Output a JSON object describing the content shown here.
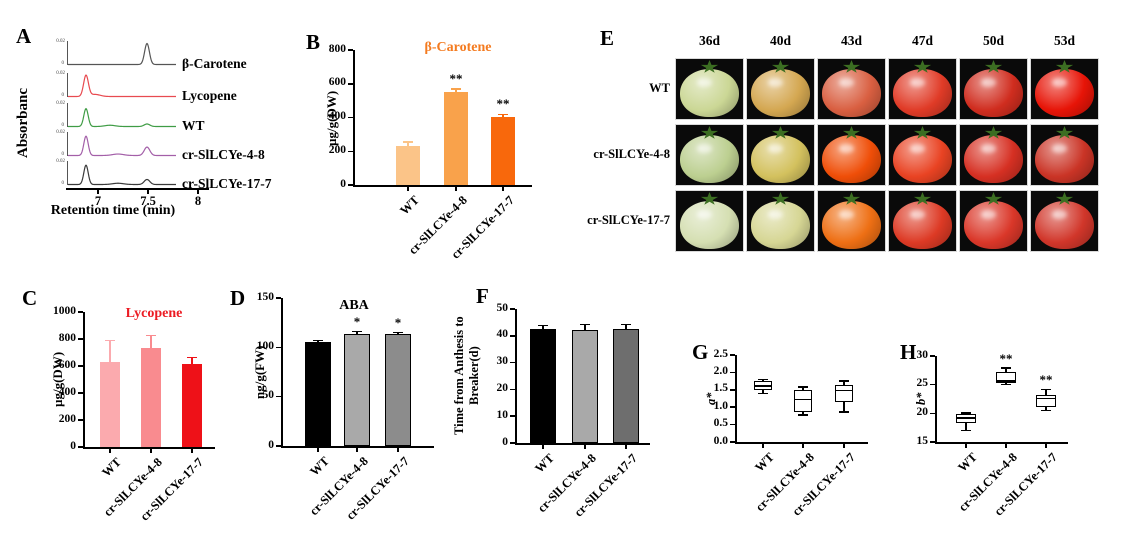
{
  "panel_letters": {
    "A": "A",
    "B": "B",
    "C": "C",
    "D": "D",
    "E": "E",
    "F": "F",
    "G": "G",
    "H": "H"
  },
  "chart_data": [
    {
      "id": "A",
      "type": "line",
      "title": "",
      "ylabel": "Absorbanc",
      "xlabel": "Retention time (min)",
      "xticks": [
        "7",
        "7.5",
        "8"
      ],
      "xrange": [
        6.7,
        8.1
      ],
      "trace_scale_max": "0.02",
      "trace_scale_min": "0",
      "traces": [
        {
          "label": "β-Carotene",
          "color": "#555555",
          "peaks": [
            {
              "rt": 7.49,
              "rel_h": 1.0,
              "sigma": 0.024
            }
          ]
        },
        {
          "label": "Lycopene",
          "color": "#e84a50",
          "peaks": [
            {
              "rt": 6.88,
              "rel_h": 1.0,
              "sigma": 0.024
            },
            {
              "rt": 6.97,
              "rel_h": 0.1,
              "sigma": 0.05
            }
          ]
        },
        {
          "label": "WT",
          "color": "#3f9c45",
          "peaks": [
            {
              "rt": 6.88,
              "rel_h": 0.85,
              "sigma": 0.022
            },
            {
              "rt": 7.12,
              "rel_h": 0.06,
              "sigma": 0.05
            },
            {
              "rt": 7.49,
              "rel_h": 0.12,
              "sigma": 0.028
            }
          ]
        },
        {
          "label": "cr-SlLCYe-4-8",
          "color": "#a35fa8",
          "peaks": [
            {
              "rt": 6.88,
              "rel_h": 0.92,
              "sigma": 0.022
            },
            {
              "rt": 7.2,
              "rel_h": 0.07,
              "sigma": 0.055
            },
            {
              "rt": 7.49,
              "rel_h": 0.4,
              "sigma": 0.028
            }
          ]
        },
        {
          "label": "cr-SlLCYe-17-7",
          "color": "#3a3a3a",
          "peaks": [
            {
              "rt": 6.88,
              "rel_h": 0.92,
              "sigma": 0.022
            },
            {
              "rt": 7.2,
              "rel_h": 0.06,
              "sigma": 0.055
            },
            {
              "rt": 7.49,
              "rel_h": 0.24,
              "sigma": 0.028
            }
          ]
        }
      ]
    },
    {
      "id": "B",
      "type": "bar",
      "title": "β-Carotene",
      "title_color": "#f47b20",
      "ylabel": "µg/g(DW)",
      "ylim": [
        0,
        800
      ],
      "yticks": [
        "0",
        "200",
        "400",
        "600",
        "800"
      ],
      "categories": [
        "WT",
        "cr-SlLCYe-4-8",
        "cr-SlLCYe-17-7"
      ],
      "values": [
        230,
        550,
        405
      ],
      "errors": [
        25,
        20,
        13
      ],
      "sig": [
        "",
        "**",
        "**"
      ],
      "bar_colors": [
        "#fbc488",
        "#f9a24b",
        "#f8680c"
      ],
      "err_black": false,
      "bar_border": false
    },
    {
      "id": "C",
      "type": "bar",
      "title": "Lycopene",
      "title_color": "#ec1c24",
      "ylabel": "µg/g(DW)",
      "ylim": [
        0,
        1000
      ],
      "yticks": [
        "0",
        "200",
        "400",
        "600",
        "800",
        "1000"
      ],
      "categories": [
        "WT",
        "cr-SlLCYe-4-8",
        "cr-SlLCYe-17-7"
      ],
      "values": [
        630,
        730,
        615
      ],
      "errors": [
        160,
        95,
        48
      ],
      "sig": [
        "",
        "",
        ""
      ],
      "bar_colors": [
        "#fbaaae",
        "#f98b8f",
        "#ee1118"
      ],
      "err_black": false,
      "bar_border": false
    },
    {
      "id": "D",
      "type": "bar",
      "title": "ABA",
      "title_color": "#000000",
      "ylabel": "ng/g(FW)",
      "ylim": [
        0,
        150
      ],
      "yticks": [
        "0",
        "50",
        "100",
        "150"
      ],
      "categories": [
        "WT",
        "cr-SlLCYe-4-8",
        "cr-SlLCYe-17-7"
      ],
      "values": [
        105,
        114,
        113.5
      ],
      "errors": [
        2,
        2,
        1.5
      ],
      "sig": [
        "",
        "*",
        "*"
      ],
      "bar_colors": [
        "#000000",
        "#a9a9a9",
        "#8c8c8c"
      ],
      "err_black": true,
      "bar_border": true
    },
    {
      "id": "E",
      "type": "table",
      "title": "",
      "columns": [
        "36d",
        "40d",
        "43d",
        "47d",
        "50d",
        "53d"
      ],
      "rows": [
        "WT",
        "cr-SlLCYe-4-8",
        "cr-SlLCYe-17-7"
      ],
      "tomato_colors": [
        [
          "#cbd795",
          "#d4a751",
          "#d95f41",
          "#e03b27",
          "#d02d1f",
          "#e71407"
        ],
        [
          "#bccf90",
          "#d3c15e",
          "#ef4e08",
          "#e94323",
          "#d63023",
          "#ca3426"
        ],
        [
          "#d5dfb2",
          "#d6d694",
          "#ee6f14",
          "#dd3a25",
          "#da3729",
          "#d1362a"
        ]
      ]
    },
    {
      "id": "F",
      "type": "bar",
      "title": "",
      "title_color": "#000000",
      "ylabel": "Time from Anthesis to\nBreaker(d)",
      "ylim": [
        0,
        50
      ],
      "yticks": [
        "0",
        "10",
        "20",
        "30",
        "40",
        "50"
      ],
      "categories": [
        "WT",
        "cr-SlLCYe-4-8",
        "cr-SlLCYe-17-7"
      ],
      "values": [
        42.5,
        42.1,
        42.6
      ],
      "errors": [
        1.4,
        2.2,
        1.6
      ],
      "sig": [
        "",
        "",
        ""
      ],
      "bar_colors": [
        "#000000",
        "#a9a9a9",
        "#6e6e6e"
      ],
      "err_black": true,
      "bar_border": true
    },
    {
      "id": "G",
      "type": "box",
      "title": "",
      "ylabel": "a*",
      "ylim": [
        0,
        2.5
      ],
      "yticks": [
        "0.0",
        "0.5",
        "1.0",
        "1.5",
        "2.0",
        "2.5"
      ],
      "categories": [
        "WT",
        "cr-SlLCYe-4-8",
        "cr-SlLCYe-17-7"
      ],
      "boxes": [
        {
          "lo": 1.4,
          "q1": 1.5,
          "med": 1.61,
          "q3": 1.76,
          "hi": 1.79
        },
        {
          "lo": 0.78,
          "q1": 0.85,
          "med": 1.22,
          "q3": 1.5,
          "hi": 1.58
        },
        {
          "lo": 0.86,
          "q1": 1.15,
          "med": 1.48,
          "q3": 1.63,
          "hi": 1.75
        }
      ],
      "sig": [
        "",
        "",
        ""
      ]
    },
    {
      "id": "H",
      "type": "box",
      "title": "",
      "ylabel": "b*",
      "ylim": [
        15,
        30
      ],
      "yticks": [
        "15",
        "20",
        "25",
        "30"
      ],
      "categories": [
        "WT",
        "cr-SlLCYe-4-8",
        "cr-SlLCYe-17-7"
      ],
      "boxes": [
        {
          "lo": 17.0,
          "q1": 18.4,
          "med": 19.2,
          "q3": 19.9,
          "hi": 20.1
        },
        {
          "lo": 25.0,
          "q1": 25.3,
          "med": 25.6,
          "q3": 27.2,
          "hi": 27.9
        },
        {
          "lo": 20.5,
          "q1": 21.1,
          "med": 22.6,
          "q3": 23.2,
          "hi": 24.2
        }
      ],
      "sig": [
        "",
        "**",
        "**"
      ]
    }
  ]
}
